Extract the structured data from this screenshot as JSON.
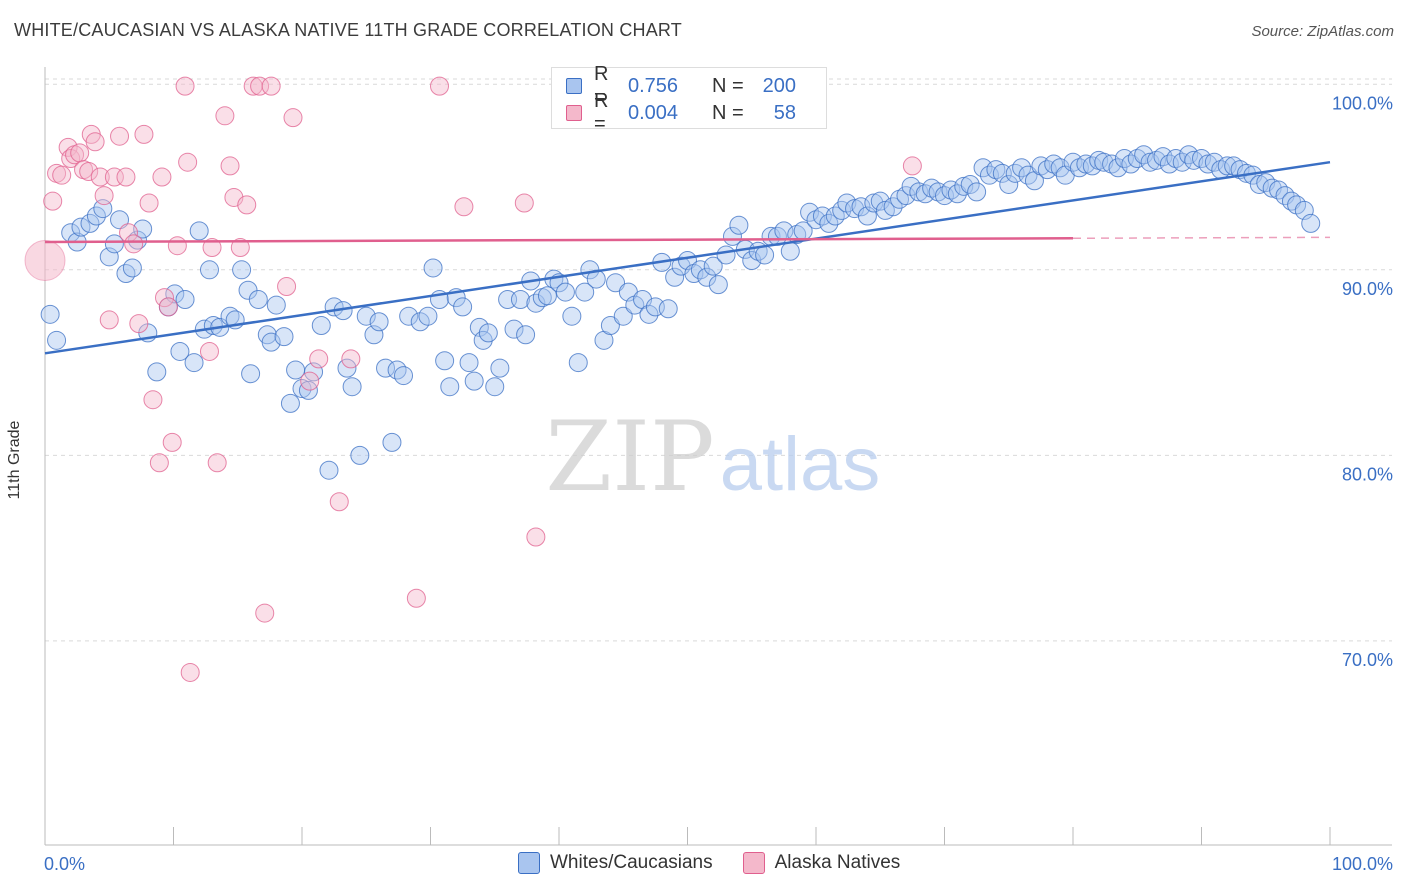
{
  "title": "WHITE/CAUCASIAN VS ALASKA NATIVE 11TH GRADE CORRELATION CHART",
  "source": "Source: ZipAtlas.com",
  "watermark": {
    "zip": "ZIP",
    "atlas": "atlas"
  },
  "colors": {
    "blue": "#3a6fc4",
    "blue_fill": "#a9c5ef",
    "pink": "#e05f8e",
    "pink_fill": "#f4b8cb",
    "grid": "#d9d9d9"
  },
  "legend": {
    "rows": [
      {
        "r_label": "R =",
        "r_value": "0.756",
        "n_label": "N =",
        "n_value": "200",
        "series": "blue"
      },
      {
        "r_label": "R =",
        "r_value": "0.004",
        "n_label": "N =",
        "n_value": "58",
        "series": "pink"
      }
    ]
  },
  "bottom_legend": [
    "Whites/Caucasians",
    "Alaska Natives"
  ],
  "chart_data": {
    "type": "scatter",
    "xlabel": "",
    "ylabel": "11th Grade",
    "xlim": [
      0,
      100
    ],
    "ylim": [
      59.0,
      101.2
    ],
    "y_ticks": [
      {
        "value": 100,
        "label": "100.0%"
      },
      {
        "value": 90,
        "label": "90.0%"
      },
      {
        "value": 80,
        "label": "80.0%"
      },
      {
        "value": 70,
        "label": "70.0%"
      }
    ],
    "x_tick_labels": [
      {
        "value": 0,
        "label": "0.0%"
      },
      {
        "value": 100,
        "label": "100.0%"
      }
    ],
    "x_minor_ticks": [
      0,
      10,
      20,
      30,
      40,
      50,
      60,
      70,
      80,
      90,
      100
    ],
    "grid": true,
    "legend_position": "top-center",
    "series": [
      {
        "name": "Whites/Caucasians",
        "color": "blue",
        "trend": {
          "x0": 0,
          "y0": 85.5,
          "x1": 100,
          "y1": 95.8
        },
        "points": [
          [
            0.4,
            87.6
          ],
          [
            0.9,
            86.2
          ],
          [
            2,
            92
          ],
          [
            2.5,
            91.5
          ],
          [
            2.8,
            92.3
          ],
          [
            3.5,
            92.5
          ],
          [
            4,
            92.9
          ],
          [
            4.5,
            93.3
          ],
          [
            5,
            90.7
          ],
          [
            5.4,
            91.4
          ],
          [
            5.8,
            92.7
          ],
          [
            6.3,
            89.8
          ],
          [
            6.8,
            90.1
          ],
          [
            7.2,
            91.6
          ],
          [
            7.6,
            92.2
          ],
          [
            8,
            86.6
          ],
          [
            8.7,
            84.5
          ],
          [
            9.6,
            88
          ],
          [
            10.1,
            88.7
          ],
          [
            10.5,
            85.6
          ],
          [
            10.9,
            88.4
          ],
          [
            11.6,
            85
          ],
          [
            12,
            92.1
          ],
          [
            12.4,
            86.8
          ],
          [
            12.8,
            90
          ],
          [
            13.1,
            87
          ],
          [
            13.6,
            86.9
          ],
          [
            14.4,
            87.5
          ],
          [
            14.8,
            87.3
          ],
          [
            15.3,
            90
          ],
          [
            15.8,
            88.9
          ],
          [
            16,
            84.4
          ],
          [
            16.6,
            88.4
          ],
          [
            17.3,
            86.5
          ],
          [
            17.6,
            86.1
          ],
          [
            18,
            88.1
          ],
          [
            18.6,
            86.4
          ],
          [
            19.1,
            82.8
          ],
          [
            19.5,
            84.6
          ],
          [
            20,
            83.6
          ],
          [
            20.5,
            83.5
          ],
          [
            20.9,
            84.5
          ],
          [
            21.5,
            87
          ],
          [
            22.1,
            79.2
          ],
          [
            22.5,
            88
          ],
          [
            23.2,
            87.8
          ],
          [
            23.5,
            84.7
          ],
          [
            23.9,
            83.7
          ],
          [
            24.5,
            80
          ],
          [
            25,
            87.5
          ],
          [
            25.6,
            86.5
          ],
          [
            26,
            87.2
          ],
          [
            26.5,
            84.7
          ],
          [
            27,
            80.7
          ],
          [
            27.4,
            84.6
          ],
          [
            27.9,
            84.3
          ],
          [
            28.3,
            87.5
          ],
          [
            29.2,
            87.2
          ],
          [
            29.8,
            87.5
          ],
          [
            30.2,
            90.1
          ],
          [
            30.7,
            88.4
          ],
          [
            31.1,
            85.1
          ],
          [
            31.5,
            83.7
          ],
          [
            32,
            88.5
          ],
          [
            32.5,
            88
          ],
          [
            33,
            85
          ],
          [
            33.4,
            84
          ],
          [
            33.8,
            86.9
          ],
          [
            34.1,
            86.2
          ],
          [
            34.5,
            86.6
          ],
          [
            35,
            83.7
          ],
          [
            35.4,
            84.7
          ],
          [
            36,
            88.4
          ],
          [
            36.5,
            86.8
          ],
          [
            37,
            88.4
          ],
          [
            37.4,
            86.5
          ],
          [
            37.8,
            89.4
          ],
          [
            38.2,
            88.2
          ],
          [
            38.7,
            88.5
          ],
          [
            39.1,
            88.6
          ],
          [
            39.6,
            89.5
          ],
          [
            40,
            89.3
          ],
          [
            40.5,
            88.8
          ],
          [
            41,
            87.5
          ],
          [
            41.5,
            85
          ],
          [
            42,
            88.8
          ],
          [
            42.4,
            90
          ],
          [
            42.9,
            89.5
          ],
          [
            43.5,
            86.2
          ],
          [
            44,
            87
          ],
          [
            44.4,
            89.3
          ],
          [
            45,
            87.5
          ],
          [
            45.4,
            88.8
          ],
          [
            45.9,
            88.1
          ],
          [
            46.5,
            88.4
          ],
          [
            47,
            87.6
          ],
          [
            47.5,
            88
          ],
          [
            48,
            90.4
          ],
          [
            48.5,
            87.9
          ],
          [
            49,
            89.6
          ],
          [
            49.5,
            90.2
          ],
          [
            50,
            90.5
          ],
          [
            50.5,
            89.8
          ],
          [
            51,
            90
          ],
          [
            51.5,
            89.6
          ],
          [
            52,
            90.2
          ],
          [
            52.4,
            89.2
          ],
          [
            53,
            90.8
          ],
          [
            53.5,
            91.8
          ],
          [
            54,
            92.4
          ],
          [
            54.5,
            91.1
          ],
          [
            55,
            90.5
          ],
          [
            55.5,
            91
          ],
          [
            56,
            90.8
          ],
          [
            56.5,
            91.8
          ],
          [
            57,
            91.8
          ],
          [
            57.5,
            92.1
          ],
          [
            58,
            91
          ],
          [
            58.5,
            91.9
          ],
          [
            59,
            92.1
          ],
          [
            59.5,
            93.1
          ],
          [
            60,
            92.7
          ],
          [
            60.5,
            92.9
          ],
          [
            61,
            92.5
          ],
          [
            61.5,
            92.9
          ],
          [
            62,
            93.2
          ],
          [
            62.4,
            93.6
          ],
          [
            63,
            93.3
          ],
          [
            63.5,
            93.4
          ],
          [
            64,
            92.9
          ],
          [
            64.5,
            93.6
          ],
          [
            65,
            93.7
          ],
          [
            65.4,
            93.2
          ],
          [
            66,
            93.4
          ],
          [
            66.5,
            93.8
          ],
          [
            67,
            94
          ],
          [
            67.4,
            94.5
          ],
          [
            68,
            94.2
          ],
          [
            68.5,
            94.1
          ],
          [
            69,
            94.4
          ],
          [
            69.5,
            94.2
          ],
          [
            70,
            94
          ],
          [
            70.5,
            94.3
          ],
          [
            71,
            94.1
          ],
          [
            71.5,
            94.5
          ],
          [
            72,
            94.6
          ],
          [
            72.5,
            94.2
          ],
          [
            73,
            95.5
          ],
          [
            73.5,
            95.1
          ],
          [
            74,
            95.4
          ],
          [
            74.5,
            95.2
          ],
          [
            75,
            94.6
          ],
          [
            75.5,
            95.2
          ],
          [
            76,
            95.5
          ],
          [
            76.5,
            95.1
          ],
          [
            77,
            94.8
          ],
          [
            77.5,
            95.6
          ],
          [
            78,
            95.4
          ],
          [
            78.5,
            95.7
          ],
          [
            79,
            95.5
          ],
          [
            79.4,
            95.1
          ],
          [
            80,
            95.8
          ],
          [
            80.5,
            95.5
          ],
          [
            81,
            95.7
          ],
          [
            81.5,
            95.6
          ],
          [
            82,
            95.9
          ],
          [
            82.4,
            95.8
          ],
          [
            83,
            95.7
          ],
          [
            83.5,
            95.5
          ],
          [
            84,
            96
          ],
          [
            84.5,
            95.7
          ],
          [
            85,
            96
          ],
          [
            85.5,
            96.2
          ],
          [
            86,
            95.8
          ],
          [
            86.5,
            95.9
          ],
          [
            87,
            96.1
          ],
          [
            87.5,
            95.7
          ],
          [
            88,
            96
          ],
          [
            88.5,
            95.8
          ],
          [
            89,
            96.2
          ],
          [
            89.4,
            95.9
          ],
          [
            90,
            96
          ],
          [
            90.5,
            95.7
          ],
          [
            91,
            95.8
          ],
          [
            91.5,
            95.4
          ],
          [
            92,
            95.6
          ],
          [
            92.5,
            95.6
          ],
          [
            93,
            95.4
          ],
          [
            93.5,
            95.2
          ],
          [
            94,
            95.1
          ],
          [
            94.5,
            94.6
          ],
          [
            95,
            94.7
          ],
          [
            95.5,
            94.4
          ],
          [
            96,
            94.3
          ],
          [
            96.5,
            94
          ],
          [
            97,
            93.7
          ],
          [
            97.4,
            93.5
          ],
          [
            98,
            93.2
          ],
          [
            98.5,
            92.5
          ]
        ]
      },
      {
        "name": "Alaska Natives",
        "color": "pink",
        "trend": {
          "x0": 0,
          "y0": 91.5,
          "x1": 80,
          "y1": 91.7,
          "dashed_to_x": 100,
          "dashed_to_y": 91.75
        },
        "points": [
          [
            0.6,
            93.7
          ],
          [
            0.9,
            95.2
          ],
          [
            1.3,
            95.1
          ],
          [
            1.8,
            96.6
          ],
          [
            2,
            96
          ],
          [
            2.3,
            96.2
          ],
          [
            2.7,
            96.3
          ],
          [
            3,
            95.4
          ],
          [
            3.4,
            95.3
          ],
          [
            3.6,
            97.3
          ],
          [
            3.9,
            96.9
          ],
          [
            4.3,
            95
          ],
          [
            4.6,
            94
          ],
          [
            5,
            87.3
          ],
          [
            5.4,
            95
          ],
          [
            5.8,
            97.2
          ],
          [
            6.3,
            95
          ],
          [
            6.5,
            92
          ],
          [
            6.9,
            91.4
          ],
          [
            7.3,
            87.1
          ],
          [
            7.7,
            97.3
          ],
          [
            8.1,
            93.6
          ],
          [
            8.4,
            83
          ],
          [
            8.9,
            79.6
          ],
          [
            9.1,
            95
          ],
          [
            9.3,
            88.5
          ],
          [
            9.6,
            88
          ],
          [
            9.9,
            80.7
          ],
          [
            10.3,
            91.3
          ],
          [
            10.9,
            99.9
          ],
          [
            11.1,
            95.8
          ],
          [
            11.3,
            68.3
          ],
          [
            12.8,
            85.6
          ],
          [
            13,
            91.2
          ],
          [
            13.4,
            79.6
          ],
          [
            14,
            98.3
          ],
          [
            14.4,
            95.6
          ],
          [
            14.7,
            93.9
          ],
          [
            15.2,
            91.2
          ],
          [
            15.7,
            93.5
          ],
          [
            16.2,
            99.9
          ],
          [
            16.7,
            99.9
          ],
          [
            17.1,
            71.5
          ],
          [
            17.6,
            99.9
          ],
          [
            18.8,
            89.1
          ],
          [
            19.3,
            98.2
          ],
          [
            20.6,
            84
          ],
          [
            21.3,
            85.2
          ],
          [
            22.9,
            77.5
          ],
          [
            23.8,
            85.2
          ],
          [
            28.9,
            72.3
          ],
          [
            30.7,
            99.9
          ],
          [
            32.6,
            93.4
          ],
          [
            37.3,
            93.6
          ],
          [
            38.2,
            75.6
          ],
          [
            40.6,
            99.9
          ],
          [
            43.9,
            99.9
          ],
          [
            67.5,
            95.6
          ]
        ]
      }
    ]
  }
}
